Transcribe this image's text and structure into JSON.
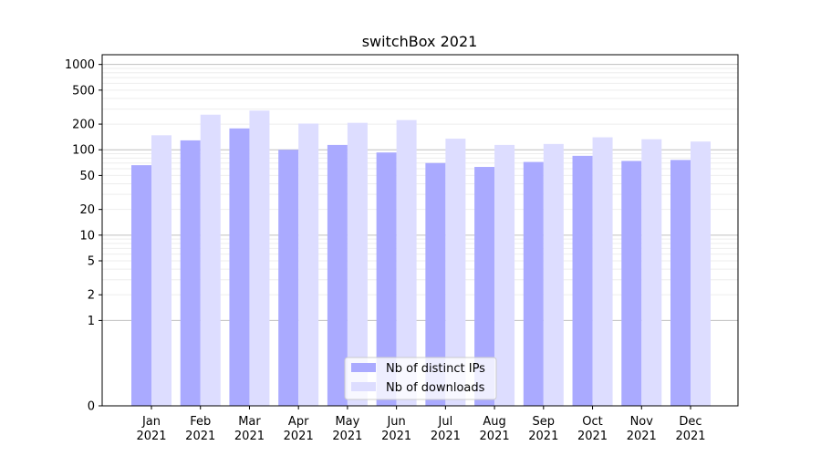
{
  "chart_data": {
    "type": "bar",
    "title": "switchBox 2021",
    "xlabel": "",
    "ylabel": "",
    "yscale": "symlog",
    "ylim": [
      0,
      1300
    ],
    "yticks": [
      0,
      1,
      2,
      5,
      10,
      20,
      50,
      100,
      200,
      500,
      1000
    ],
    "categories": [
      [
        "Jan",
        "2021"
      ],
      [
        "Feb",
        "2021"
      ],
      [
        "Mar",
        "2021"
      ],
      [
        "Apr",
        "2021"
      ],
      [
        "May",
        "2021"
      ],
      [
        "Jun",
        "2021"
      ],
      [
        "Jul",
        "2021"
      ],
      [
        "Aug",
        "2021"
      ],
      [
        "Sep",
        "2021"
      ],
      [
        "Oct",
        "2021"
      ],
      [
        "Nov",
        "2021"
      ],
      [
        "Dec",
        "2021"
      ]
    ],
    "series": [
      {
        "name": "Nb of distinct IPs",
        "color": "#aaaaff",
        "values": [
          66,
          129,
          178,
          100,
          114,
          93,
          70,
          63,
          72,
          85,
          74,
          76
        ]
      },
      {
        "name": "Nb of downloads",
        "color": "#ddddff",
        "values": [
          148,
          258,
          288,
          203,
          207,
          223,
          135,
          114,
          117,
          140,
          133,
          125
        ]
      }
    ],
    "grid": true,
    "legend": "bottom-center"
  }
}
